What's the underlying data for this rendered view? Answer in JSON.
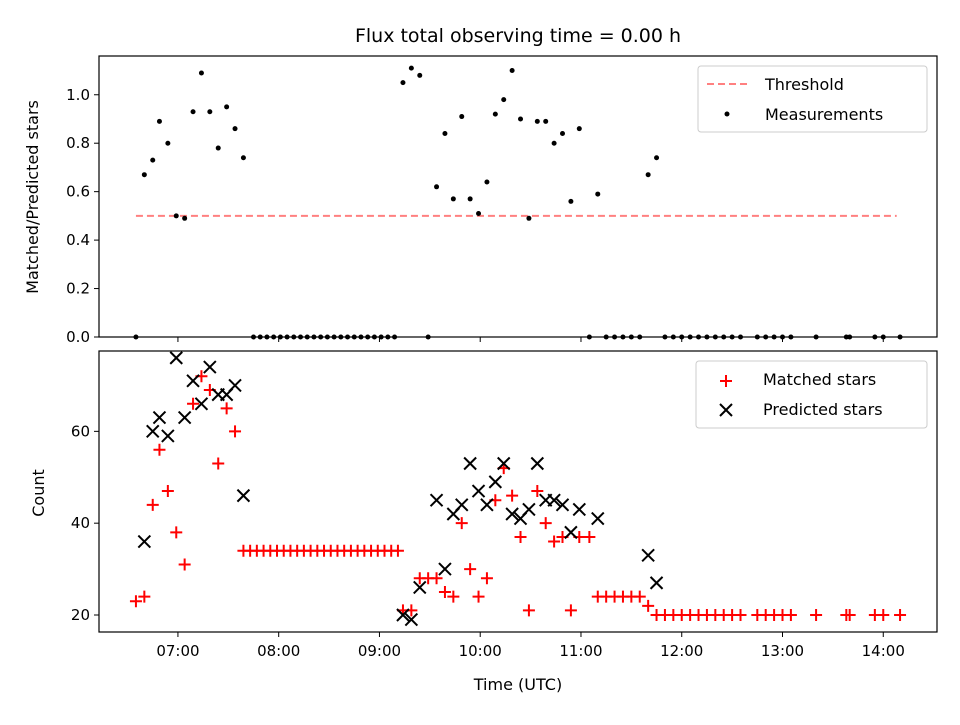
{
  "chart_data": [
    {
      "type": "scatter",
      "title": "Flux total observing time = 0.00 h",
      "xlabel": "",
      "ylabel": "Matched/Predicted stars",
      "ylim": [
        0,
        1.16
      ],
      "yticks": [
        0.0,
        0.2,
        0.4,
        0.6,
        0.8,
        1.0
      ],
      "ytick_labels": [
        "0.0",
        "0.2",
        "0.4",
        "0.6",
        "0.8",
        "1.0"
      ],
      "xlim": [
        "06:13",
        "14:32"
      ],
      "xticks": [
        "07:00",
        "08:00",
        "09:00",
        "10:00",
        "11:00",
        "12:00",
        "13:00",
        "14:00"
      ],
      "x_ticklabels_shown": false,
      "grid": false,
      "legend_position": "top-right",
      "threshold": {
        "name": "Threshold",
        "y": 0.5,
        "x_start": "06:35",
        "x_end": "14:08",
        "color": "#ff8080",
        "style": "dashed"
      },
      "series": [
        {
          "name": "Measurements",
          "color": "#000000",
          "marker": "dot",
          "points": [
            [
              "06:35",
              0.0
            ],
            [
              "06:40",
              0.67
            ],
            [
              "06:45",
              0.73
            ],
            [
              "06:49",
              0.89
            ],
            [
              "06:54",
              0.8
            ],
            [
              "06:59",
              0.5
            ],
            [
              "07:04",
              0.49
            ],
            [
              "07:09",
              0.93
            ],
            [
              "07:14",
              1.09
            ],
            [
              "07:19",
              0.93
            ],
            [
              "07:24",
              0.78
            ],
            [
              "07:29",
              0.95
            ],
            [
              "07:34",
              0.86
            ],
            [
              "07:39",
              0.74
            ],
            [
              "07:45",
              0.0
            ],
            [
              "07:49",
              0.0
            ],
            [
              "07:53",
              0.0
            ],
            [
              "07:57",
              0.0
            ],
            [
              "08:01",
              0.0
            ],
            [
              "08:05",
              0.0
            ],
            [
              "08:09",
              0.0
            ],
            [
              "08:13",
              0.0
            ],
            [
              "08:17",
              0.0
            ],
            [
              "08:21",
              0.0
            ],
            [
              "08:25",
              0.0
            ],
            [
              "08:29",
              0.0
            ],
            [
              "08:33",
              0.0
            ],
            [
              "08:37",
              0.0
            ],
            [
              "08:41",
              0.0
            ],
            [
              "08:45",
              0.0
            ],
            [
              "08:49",
              0.0
            ],
            [
              "08:53",
              0.0
            ],
            [
              "08:57",
              0.0
            ],
            [
              "09:01",
              0.0
            ],
            [
              "09:05",
              0.0
            ],
            [
              "09:09",
              0.0
            ],
            [
              "09:14",
              1.05
            ],
            [
              "09:19",
              1.11
            ],
            [
              "09:24",
              1.08
            ],
            [
              "09:29",
              0.0
            ],
            [
              "09:34",
              0.62
            ],
            [
              "09:39",
              0.84
            ],
            [
              "09:44",
              0.57
            ],
            [
              "09:49",
              0.91
            ],
            [
              "09:54",
              0.57
            ],
            [
              "09:59",
              0.51
            ],
            [
              "10:04",
              0.64
            ],
            [
              "10:09",
              0.92
            ],
            [
              "10:14",
              0.98
            ],
            [
              "10:19",
              1.1
            ],
            [
              "10:24",
              0.9
            ],
            [
              "10:29",
              0.49
            ],
            [
              "10:34",
              0.89
            ],
            [
              "10:39",
              0.89
            ],
            [
              "10:44",
              0.8
            ],
            [
              "10:49",
              0.84
            ],
            [
              "10:54",
              0.56
            ],
            [
              "10:59",
              0.86
            ],
            [
              "11:05",
              0.0
            ],
            [
              "11:10",
              0.59
            ],
            [
              "11:15",
              0.0
            ],
            [
              "11:20",
              0.0
            ],
            [
              "11:25",
              0.0
            ],
            [
              "11:30",
              0.0
            ],
            [
              "11:35",
              0.0
            ],
            [
              "11:40",
              0.67
            ],
            [
              "11:45",
              0.74
            ],
            [
              "11:50",
              0.0
            ],
            [
              "11:55",
              0.0
            ],
            [
              "12:00",
              0.0
            ],
            [
              "12:05",
              0.0
            ],
            [
              "12:10",
              0.0
            ],
            [
              "12:15",
              0.0
            ],
            [
              "12:20",
              0.0
            ],
            [
              "12:25",
              0.0
            ],
            [
              "12:30",
              0.0
            ],
            [
              "12:35",
              0.0
            ],
            [
              "12:45",
              0.0
            ],
            [
              "12:50",
              0.0
            ],
            [
              "12:55",
              0.0
            ],
            [
              "13:00",
              0.0
            ],
            [
              "13:05",
              0.0
            ],
            [
              "13:20",
              0.0
            ],
            [
              "13:38",
              0.0
            ],
            [
              "13:40",
              0.0
            ],
            [
              "13:55",
              0.0
            ],
            [
              "14:00",
              0.0
            ],
            [
              "14:10",
              0.0
            ]
          ]
        }
      ]
    },
    {
      "type": "scatter",
      "title": "",
      "xlabel": "Time (UTC)",
      "ylabel": "Count",
      "ylim": [
        16.3,
        77.5
      ],
      "yticks": [
        20,
        40,
        60
      ],
      "ytick_labels": [
        "20",
        "40",
        "60"
      ],
      "xlim": [
        "06:13",
        "14:32"
      ],
      "xticks": [
        "07:00",
        "08:00",
        "09:00",
        "10:00",
        "11:00",
        "12:00",
        "13:00",
        "14:00"
      ],
      "xtick_labels": [
        "07:00",
        "08:00",
        "09:00",
        "10:00",
        "11:00",
        "12:00",
        "13:00",
        "14:00"
      ],
      "grid": false,
      "legend_position": "top-right",
      "series": [
        {
          "name": "Matched stars",
          "color": "#ff0000",
          "marker": "plus",
          "points": [
            [
              "06:35",
              23
            ],
            [
              "06:40",
              24
            ],
            [
              "06:45",
              44
            ],
            [
              "06:49",
              56
            ],
            [
              "06:54",
              47
            ],
            [
              "06:59",
              38
            ],
            [
              "07:04",
              31
            ],
            [
              "07:09",
              66
            ],
            [
              "07:14",
              72
            ],
            [
              "07:19",
              69
            ],
            [
              "07:24",
              53
            ],
            [
              "07:29",
              65
            ],
            [
              "07:34",
              60
            ],
            [
              "07:39",
              34
            ],
            [
              "07:43",
              34
            ],
            [
              "07:47",
              34
            ],
            [
              "07:51",
              34
            ],
            [
              "07:55",
              34
            ],
            [
              "07:59",
              34
            ],
            [
              "08:03",
              34
            ],
            [
              "08:07",
              34
            ],
            [
              "08:11",
              34
            ],
            [
              "08:15",
              34
            ],
            [
              "08:19",
              34
            ],
            [
              "08:23",
              34
            ],
            [
              "08:27",
              34
            ],
            [
              "08:31",
              34
            ],
            [
              "08:35",
              34
            ],
            [
              "08:39",
              34
            ],
            [
              "08:43",
              34
            ],
            [
              "08:47",
              34
            ],
            [
              "08:51",
              34
            ],
            [
              "08:55",
              34
            ],
            [
              "08:59",
              34
            ],
            [
              "09:03",
              34
            ],
            [
              "09:07",
              34
            ],
            [
              "09:11",
              34
            ],
            [
              "09:14",
              21
            ],
            [
              "09:19",
              21
            ],
            [
              "09:24",
              28
            ],
            [
              "09:29",
              28
            ],
            [
              "09:34",
              28
            ],
            [
              "09:39",
              25
            ],
            [
              "09:44",
              24
            ],
            [
              "09:49",
              40
            ],
            [
              "09:54",
              30
            ],
            [
              "09:59",
              24
            ],
            [
              "10:04",
              28
            ],
            [
              "10:09",
              45
            ],
            [
              "10:14",
              52
            ],
            [
              "10:19",
              46
            ],
            [
              "10:24",
              37
            ],
            [
              "10:29",
              21
            ],
            [
              "10:34",
              47
            ],
            [
              "10:39",
              40
            ],
            [
              "10:44",
              36
            ],
            [
              "10:49",
              37
            ],
            [
              "10:54",
              21
            ],
            [
              "10:59",
              37
            ],
            [
              "11:05",
              37
            ],
            [
              "11:10",
              24
            ],
            [
              "11:15",
              24
            ],
            [
              "11:20",
              24
            ],
            [
              "11:25",
              24
            ],
            [
              "11:30",
              24
            ],
            [
              "11:35",
              24
            ],
            [
              "11:40",
              22
            ],
            [
              "11:45",
              20
            ],
            [
              "11:50",
              20
            ],
            [
              "11:55",
              20
            ],
            [
              "12:00",
              20
            ],
            [
              "12:05",
              20
            ],
            [
              "12:10",
              20
            ],
            [
              "12:15",
              20
            ],
            [
              "12:20",
              20
            ],
            [
              "12:25",
              20
            ],
            [
              "12:30",
              20
            ],
            [
              "12:35",
              20
            ],
            [
              "12:45",
              20
            ],
            [
              "12:50",
              20
            ],
            [
              "12:55",
              20
            ],
            [
              "13:00",
              20
            ],
            [
              "13:05",
              20
            ],
            [
              "13:20",
              20
            ],
            [
              "13:38",
              20
            ],
            [
              "13:40",
              20
            ],
            [
              "13:55",
              20
            ],
            [
              "14:00",
              20
            ],
            [
              "14:10",
              20
            ]
          ]
        },
        {
          "name": "Predicted stars",
          "color": "#000000",
          "marker": "x",
          "points": [
            [
              "06:40",
              36
            ],
            [
              "06:45",
              60
            ],
            [
              "06:49",
              63
            ],
            [
              "06:54",
              59
            ],
            [
              "06:59",
              76
            ],
            [
              "07:04",
              63
            ],
            [
              "07:09",
              71
            ],
            [
              "07:14",
              66
            ],
            [
              "07:19",
              74
            ],
            [
              "07:24",
              68
            ],
            [
              "07:29",
              68
            ],
            [
              "07:34",
              70
            ],
            [
              "07:39",
              46
            ],
            [
              "09:14",
              20
            ],
            [
              "09:19",
              19
            ],
            [
              "09:24",
              26
            ],
            [
              "09:34",
              45
            ],
            [
              "09:39",
              30
            ],
            [
              "09:44",
              42
            ],
            [
              "09:49",
              44
            ],
            [
              "09:54",
              53
            ],
            [
              "09:59",
              47
            ],
            [
              "10:04",
              44
            ],
            [
              "10:09",
              49
            ],
            [
              "10:14",
              53
            ],
            [
              "10:19",
              42
            ],
            [
              "10:24",
              41
            ],
            [
              "10:29",
              43
            ],
            [
              "10:34",
              53
            ],
            [
              "10:39",
              45
            ],
            [
              "10:44",
              45
            ],
            [
              "10:49",
              44
            ],
            [
              "10:54",
              38
            ],
            [
              "10:59",
              43
            ],
            [
              "11:10",
              41
            ],
            [
              "11:40",
              33
            ],
            [
              "11:45",
              27
            ]
          ]
        }
      ]
    }
  ]
}
